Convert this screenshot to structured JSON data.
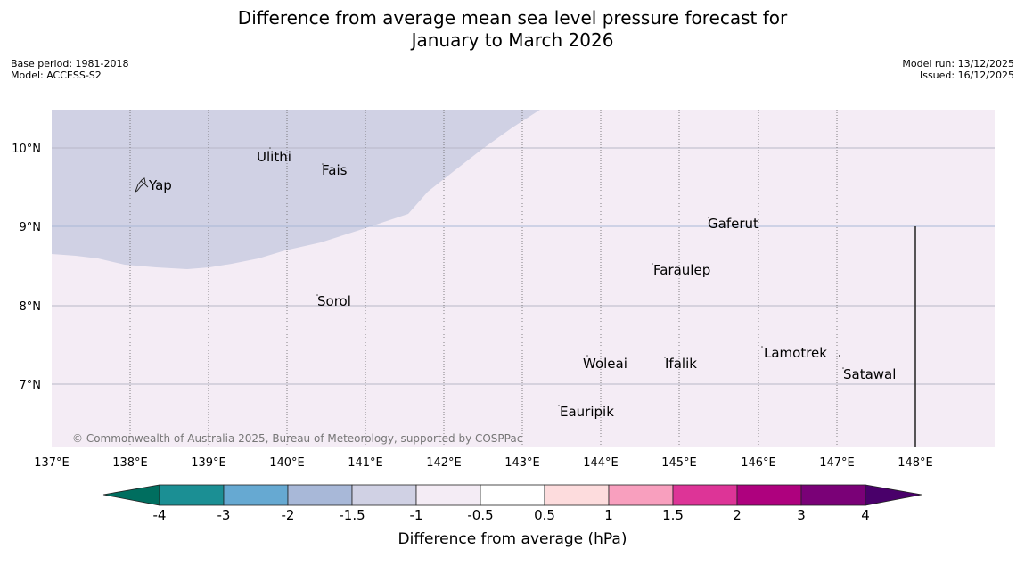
{
  "title_line1": "Difference from average mean sea level pressure forecast for",
  "title_line2": "January to March 2026",
  "base_period": "Base period: 1981-2018",
  "model": "Model: ACCESS-S2",
  "model_run": "Model run: 13/12/2025",
  "issued": "Issued: 16/12/2025",
  "copyright": "© Commonwealth of Australia 2025, Bureau of Meteorology, supported by COSPPac",
  "map": {
    "lon_ticks": [
      "137°E",
      "138°E",
      "139°E",
      "140°E",
      "141°E",
      "142°E",
      "143°E",
      "144°E",
      "145°E",
      "146°E",
      "147°E",
      "148°E"
    ],
    "lat_ticks": [
      "10°N",
      "9°N",
      "8°N",
      "7°N"
    ],
    "places": [
      {
        "name": "Yap"
      },
      {
        "name": "Ulithi"
      },
      {
        "name": "Fais"
      },
      {
        "name": "Gaferut"
      },
      {
        "name": "Faraulep"
      },
      {
        "name": "Sorol"
      },
      {
        "name": "Woleai"
      },
      {
        "name": "Ifalik"
      },
      {
        "name": "Lamotrek"
      },
      {
        "name": "Satawal"
      },
      {
        "name": "Eauripik"
      }
    ],
    "regions": [
      {
        "category": "-1.5 to -1",
        "color": "#d0d1e4"
      },
      {
        "category": "-1 to -0.5",
        "color": "#f4ecf5"
      }
    ]
  },
  "colorbar": {
    "label": "Difference from average (hPa)",
    "ticks": [
      "-4",
      "-3",
      "-2",
      "-1.5",
      "-1",
      "-0.5",
      "0.5",
      "1",
      "1.5",
      "2",
      "3",
      "4"
    ],
    "colors": [
      "#006e5f",
      "#1b8f94",
      "#66a9d2",
      "#a8b8d8",
      "#d0d1e4",
      "#f4ecf5",
      "#ffffff",
      "#fddcdd",
      "#f89fbe",
      "#dd3497",
      "#ae017e",
      "#7a0177",
      "#49006a"
    ]
  }
}
